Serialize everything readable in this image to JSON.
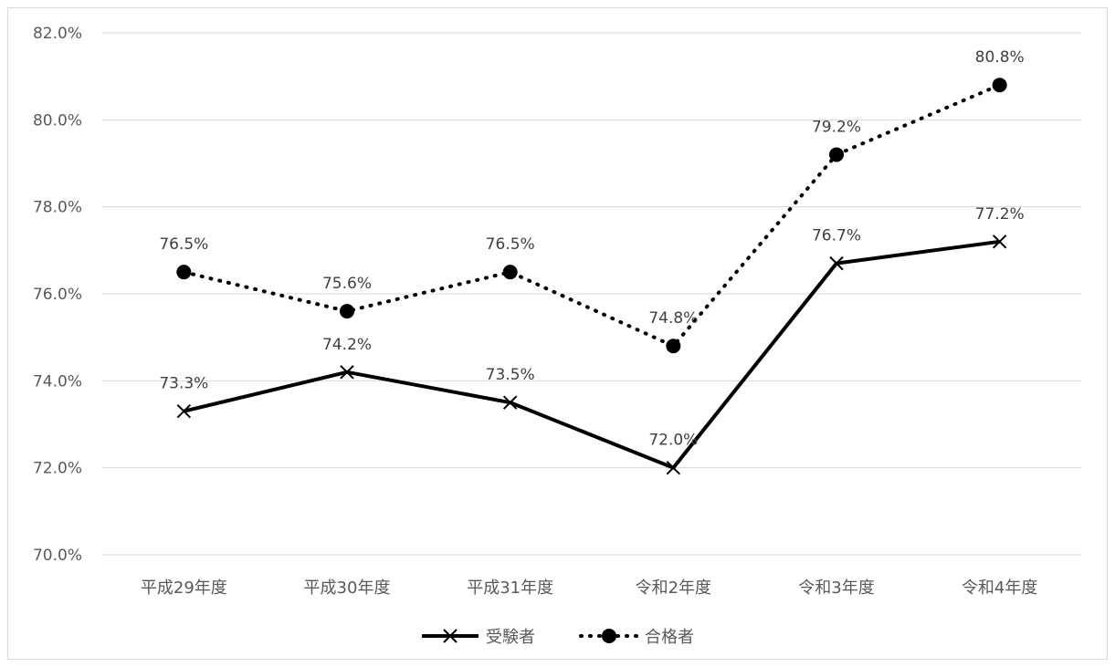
{
  "chart_data": {
    "type": "line",
    "title": "",
    "xlabel": "",
    "ylabel": "",
    "categories": [
      "平成29年度",
      "平成30年度",
      "平成31年度",
      "令和2年度",
      "令和3年度",
      "令和4年度"
    ],
    "ylim": [
      70.0,
      82.0
    ],
    "yticks": [
      70.0,
      72.0,
      74.0,
      76.0,
      78.0,
      80.0,
      82.0
    ],
    "ytick_labels": [
      "70.0%",
      "72.0%",
      "74.0%",
      "76.0%",
      "78.0%",
      "80.0%",
      "82.0%"
    ],
    "grid": true,
    "legend_position": "bottom",
    "series": [
      {
        "name": "受験者",
        "values": [
          73.3,
          74.2,
          73.5,
          72.0,
          76.7,
          77.2
        ],
        "labels": [
          "73.3%",
          "74.2%",
          "73.5%",
          "72.0%",
          "76.7%",
          "77.2%"
        ],
        "line_style": "solid",
        "marker": "x",
        "color": "#000000"
      },
      {
        "name": "合格者",
        "values": [
          76.5,
          75.6,
          76.5,
          74.8,
          79.2,
          80.8
        ],
        "labels": [
          "76.5%",
          "75.6%",
          "76.5%",
          "74.8%",
          "79.2%",
          "80.8%"
        ],
        "line_style": "dotted",
        "marker": "circle",
        "color": "#000000"
      }
    ]
  }
}
